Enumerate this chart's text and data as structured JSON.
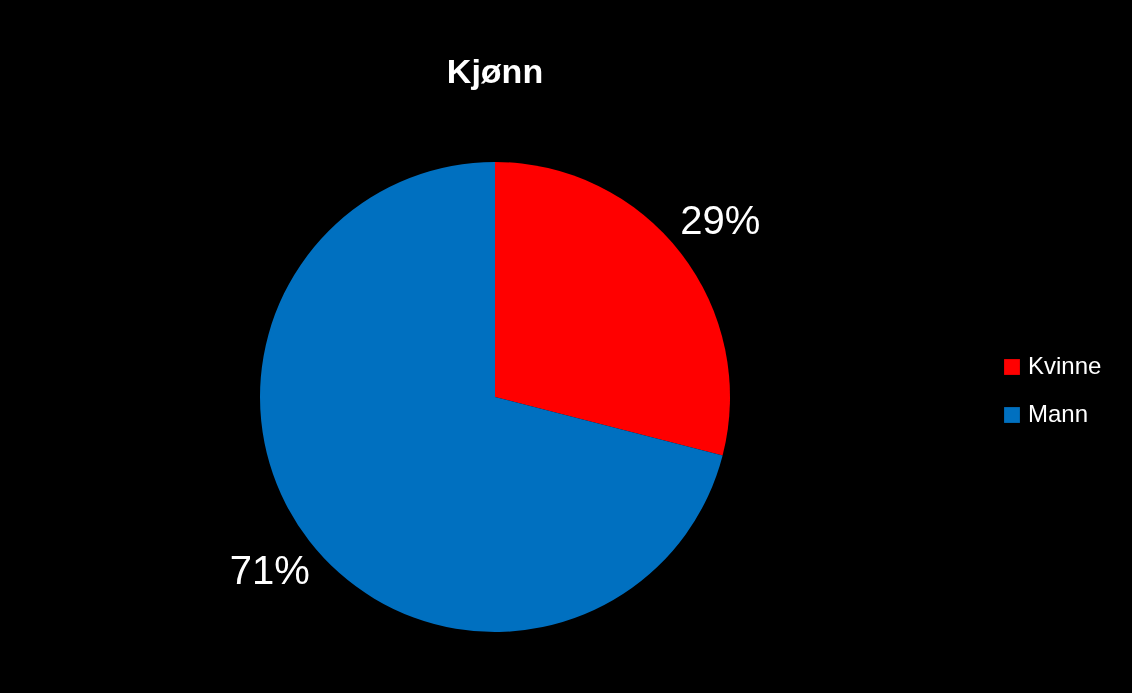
{
  "chart_data": {
    "type": "pie",
    "title": "Kjønn",
    "categories": [
      "Kvinne",
      "Mann"
    ],
    "values": [
      29,
      71
    ],
    "value_labels": [
      "29%",
      "71%"
    ],
    "colors": [
      "#ff0000",
      "#0070c0"
    ],
    "legend": "right"
  }
}
